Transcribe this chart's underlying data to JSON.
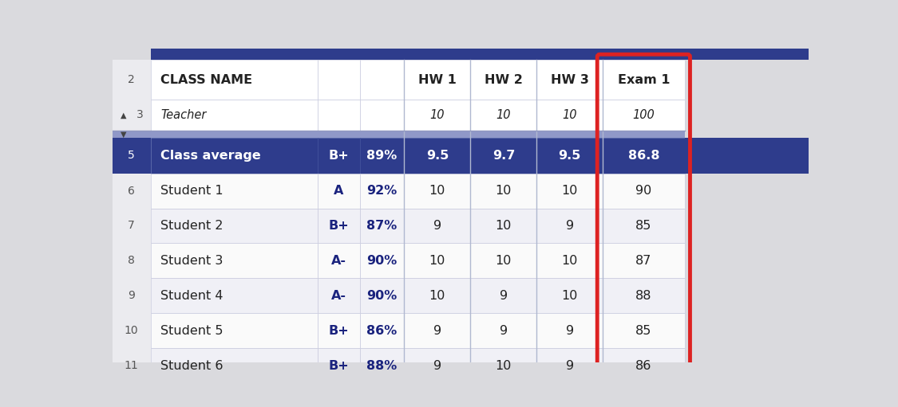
{
  "students": [
    [
      "Student 1",
      "A",
      "92%",
      "10",
      "10",
      "10",
      "90"
    ],
    [
      "Student 2",
      "B+",
      "87%",
      "9",
      "10",
      "9",
      "85"
    ],
    [
      "Student 3",
      "A-",
      "90%",
      "10",
      "10",
      "10",
      "87"
    ],
    [
      "Student 4",
      "A-",
      "90%",
      "10",
      "9",
      "10",
      "88"
    ],
    [
      "Student 5",
      "B+",
      "86%",
      "9",
      "9",
      "9",
      "85"
    ],
    [
      "Student 6",
      "B+",
      "88%",
      "9",
      "10",
      "9",
      "86"
    ]
  ],
  "row_nums_students": [
    "6",
    "7",
    "8",
    "9",
    "10",
    "11"
  ],
  "header_bg": "#2E3C8C",
  "avg_bg": "#2E3C8C",
  "sep_bar_bg": "#9098C8",
  "row_bg_light": "#F0F0F6",
  "row_bg_white": "#FAFAFA",
  "white": "#FFFFFF",
  "dark_blue_text": "#1a237e",
  "black_text": "#222222",
  "border_color": "#C8CADE",
  "red_highlight": "#DD2222",
  "fig_bg": "#DADADE",
  "row_num_bg": "#EBEBEF",
  "top_bar_bg": "#2E3C8C",
  "sep_line_color": "#B0B4CC"
}
